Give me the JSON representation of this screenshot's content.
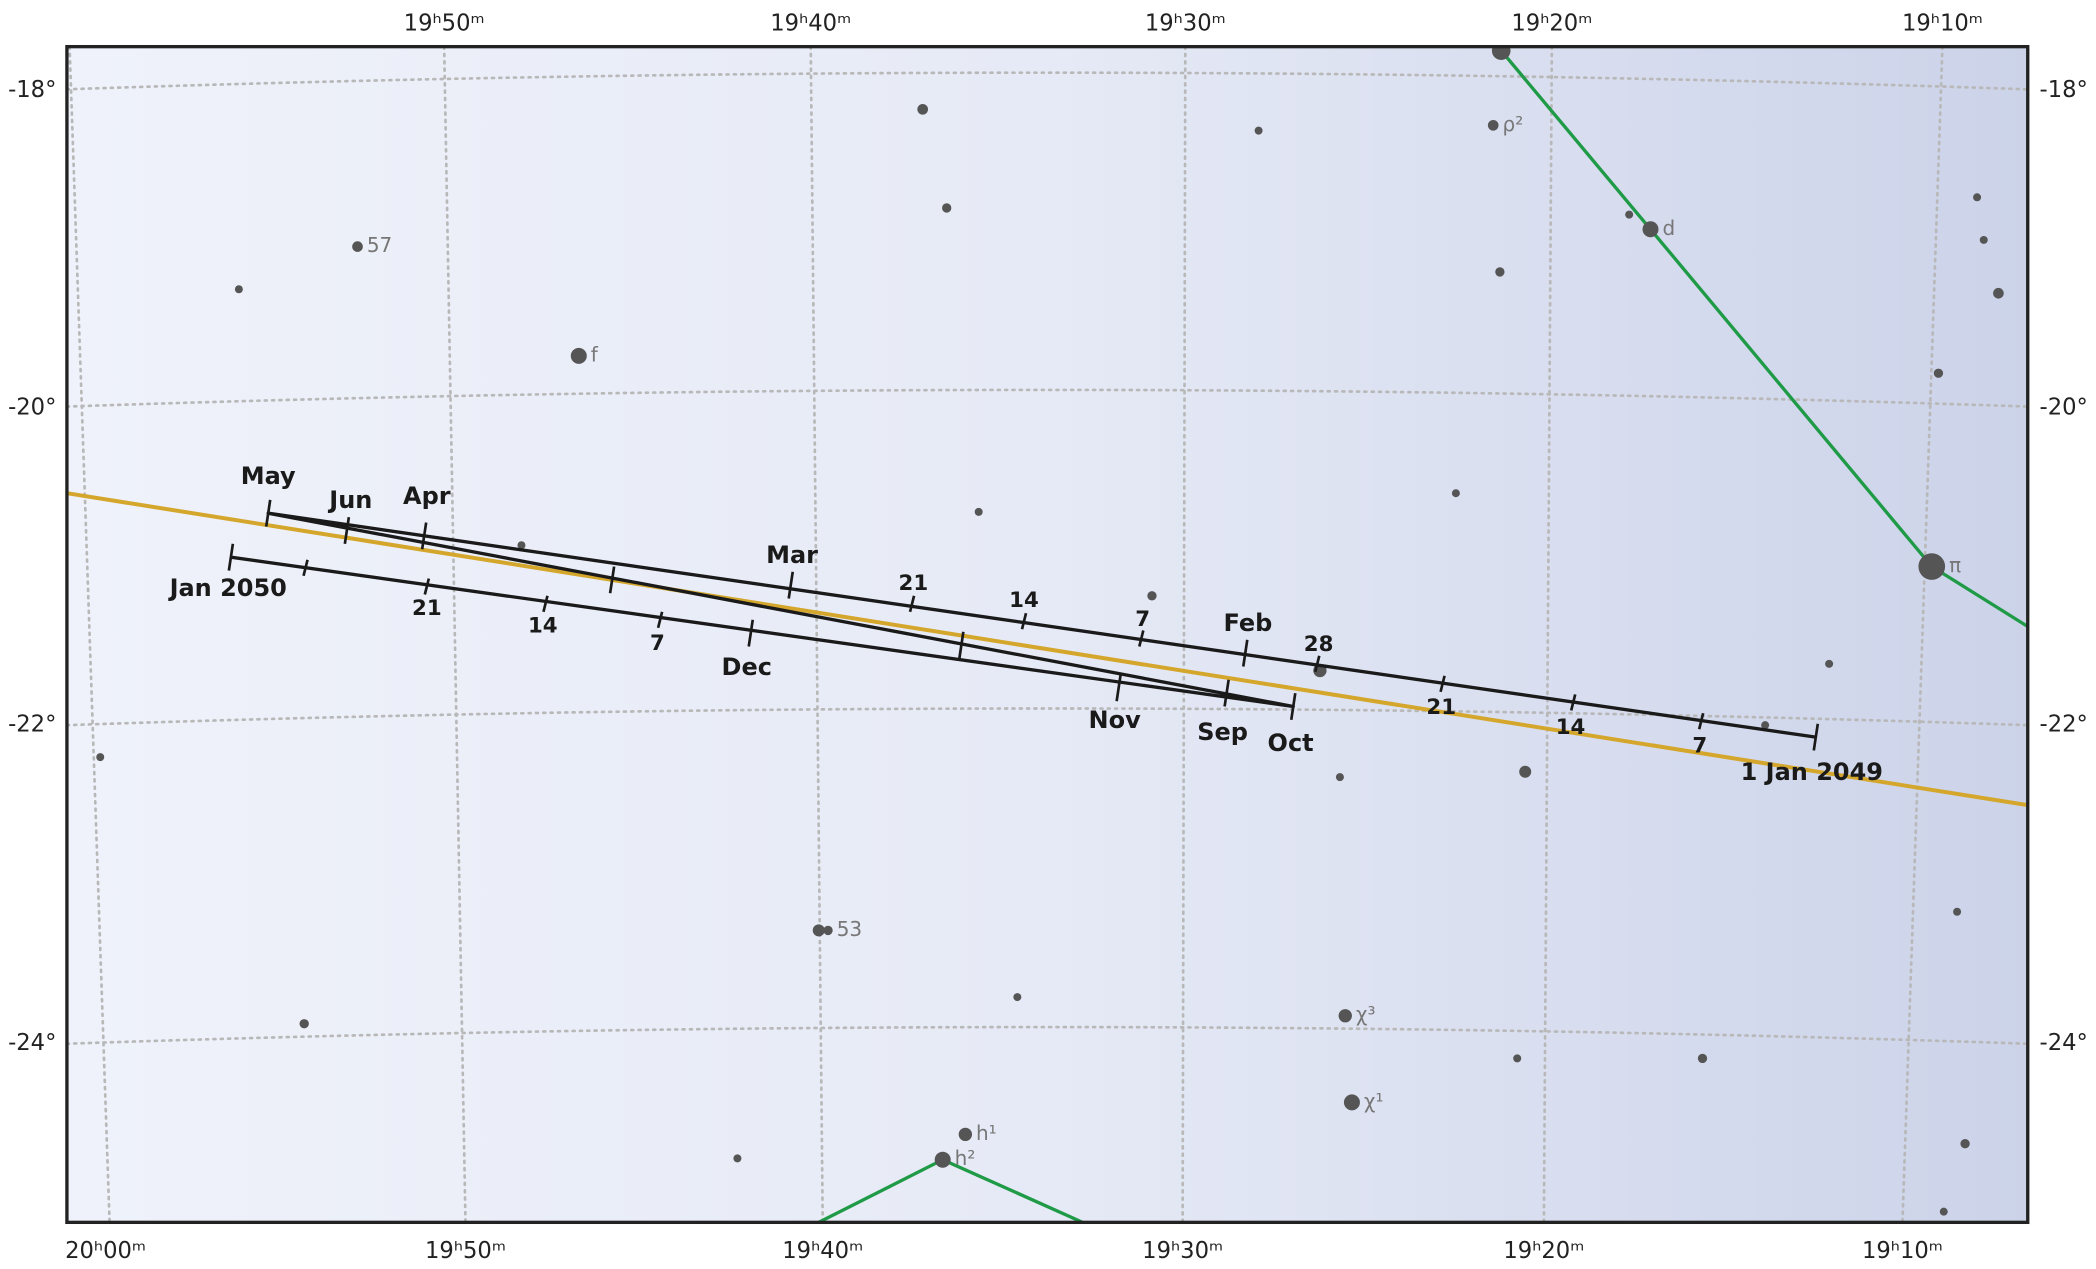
{
  "ra_top": [
    "19ʰ50ᵐ",
    "19ʰ40ᵐ",
    "19ʰ30ᵐ",
    "19ʰ20ᵐ",
    "19ʰ10ᵐ"
  ],
  "ra_bottom": [
    "20ʰ00ᵐ",
    "19ʰ50ᵐ",
    "19ʰ40ᵐ",
    "19ʰ30ᵐ",
    "19ʰ20ᵐ",
    "19ʰ10ᵐ"
  ],
  "dec_left": [
    "-18°",
    "-20°",
    "-22°",
    "-24°"
  ],
  "dec_right": [
    "-18°",
    "-20°",
    "-22°",
    "-24°"
  ],
  "star_labels": [
    "57",
    "f",
    "ρ²",
    "d",
    "π",
    "53",
    "χ³",
    "χ¹",
    "h¹",
    "h²"
  ],
  "path_labels": [
    "1 Jan 2049",
    "7",
    "14",
    "21",
    "28",
    "Feb",
    "7",
    "14",
    "21",
    "Mar",
    "Apr",
    "May",
    "Jun",
    "Sep",
    "Oct",
    "Nov",
    "Dec",
    "7",
    "14",
    "21",
    "Jan 2050"
  ]
}
